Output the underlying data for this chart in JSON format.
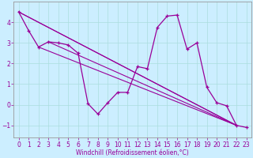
{
  "xlabel": "Windchill (Refroidissement éolien,°C)",
  "bg_color": "#cceeff",
  "line_color": "#990099",
  "grid_color": "#aadddd",
  "series": [
    [
      0,
      4.5
    ],
    [
      1,
      3.6
    ],
    [
      2,
      2.8
    ],
    [
      3,
      3.05
    ],
    [
      4,
      3.0
    ],
    [
      5,
      2.9
    ],
    [
      6,
      2.5
    ],
    [
      7,
      0.05
    ],
    [
      8,
      -0.45
    ],
    [
      9,
      0.1
    ],
    [
      10,
      0.6
    ],
    [
      11,
      0.6
    ],
    [
      12,
      1.85
    ],
    [
      13,
      1.75
    ],
    [
      14,
      3.75
    ],
    [
      15,
      4.3
    ],
    [
      16,
      4.35
    ],
    [
      17,
      2.7
    ],
    [
      18,
      3.0
    ],
    [
      19,
      0.85
    ],
    [
      20,
      0.1
    ],
    [
      21,
      -0.05
    ],
    [
      22,
      -1.0
    ],
    [
      23,
      -1.1
    ]
  ],
  "straight_lines": [
    [
      [
        0,
        4.5
      ],
      [
        22,
        -1.0
      ]
    ],
    [
      [
        0,
        4.5
      ],
      [
        22,
        -1.0
      ]
    ],
    [
      [
        2,
        2.8
      ],
      [
        22,
        -1.0
      ]
    ],
    [
      [
        3,
        3.05
      ],
      [
        22,
        -1.0
      ]
    ]
  ],
  "xlim": [
    -0.5,
    23.5
  ],
  "ylim": [
    -1.6,
    5.0
  ],
  "yticks": [
    -1,
    0,
    1,
    2,
    3,
    4
  ],
  "xticks": [
    0,
    1,
    2,
    3,
    4,
    5,
    6,
    7,
    8,
    9,
    10,
    11,
    12,
    13,
    14,
    15,
    16,
    17,
    18,
    19,
    20,
    21,
    22,
    23
  ],
  "tick_fontsize": 5.5,
  "xlabel_fontsize": 5.5
}
